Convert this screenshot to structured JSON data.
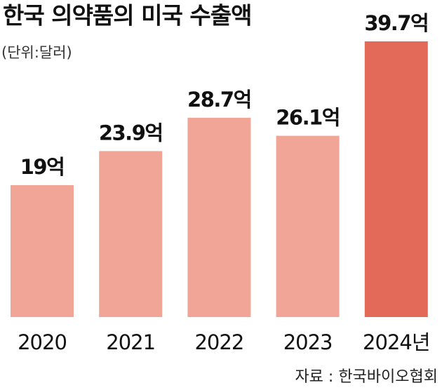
{
  "chart_data": {
    "type": "bar",
    "title": "한국 의약품의 미국 수출액",
    "subtitle": "(단위:달러)",
    "categories": [
      "2020",
      "2021",
      "2022",
      "2023",
      "2024년"
    ],
    "values": [
      19,
      23.9,
      28.7,
      26.1,
      39.7
    ],
    "value_labels": [
      "19억",
      "23.9억",
      "28.7억",
      "26.1억",
      "39.7억"
    ],
    "colors": [
      "#f0a597",
      "#f0a597",
      "#f0a597",
      "#f0a597",
      "#e36a58"
    ],
    "source": "자료 : 한국바이오협회"
  }
}
